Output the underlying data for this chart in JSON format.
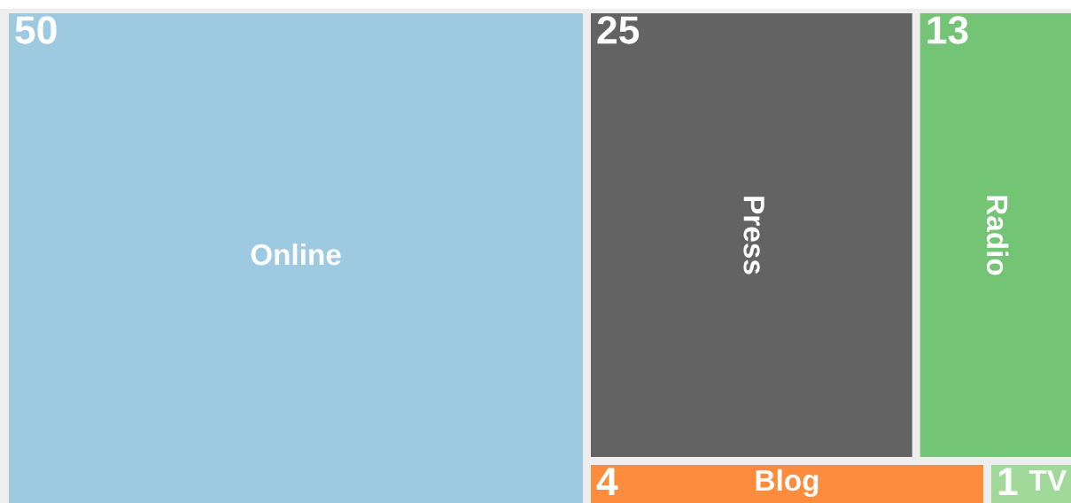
{
  "chart_data": {
    "type": "other",
    "categories": [
      "Online",
      "Press",
      "Radio",
      "Blog",
      "TV"
    ],
    "values": [
      50,
      25,
      13,
      4,
      1
    ],
    "colors": [
      "#9ecae1",
      "#636363",
      "#74c476",
      "#fd8d3c",
      "#a1d99b"
    ],
    "data_labels": true
  }
}
